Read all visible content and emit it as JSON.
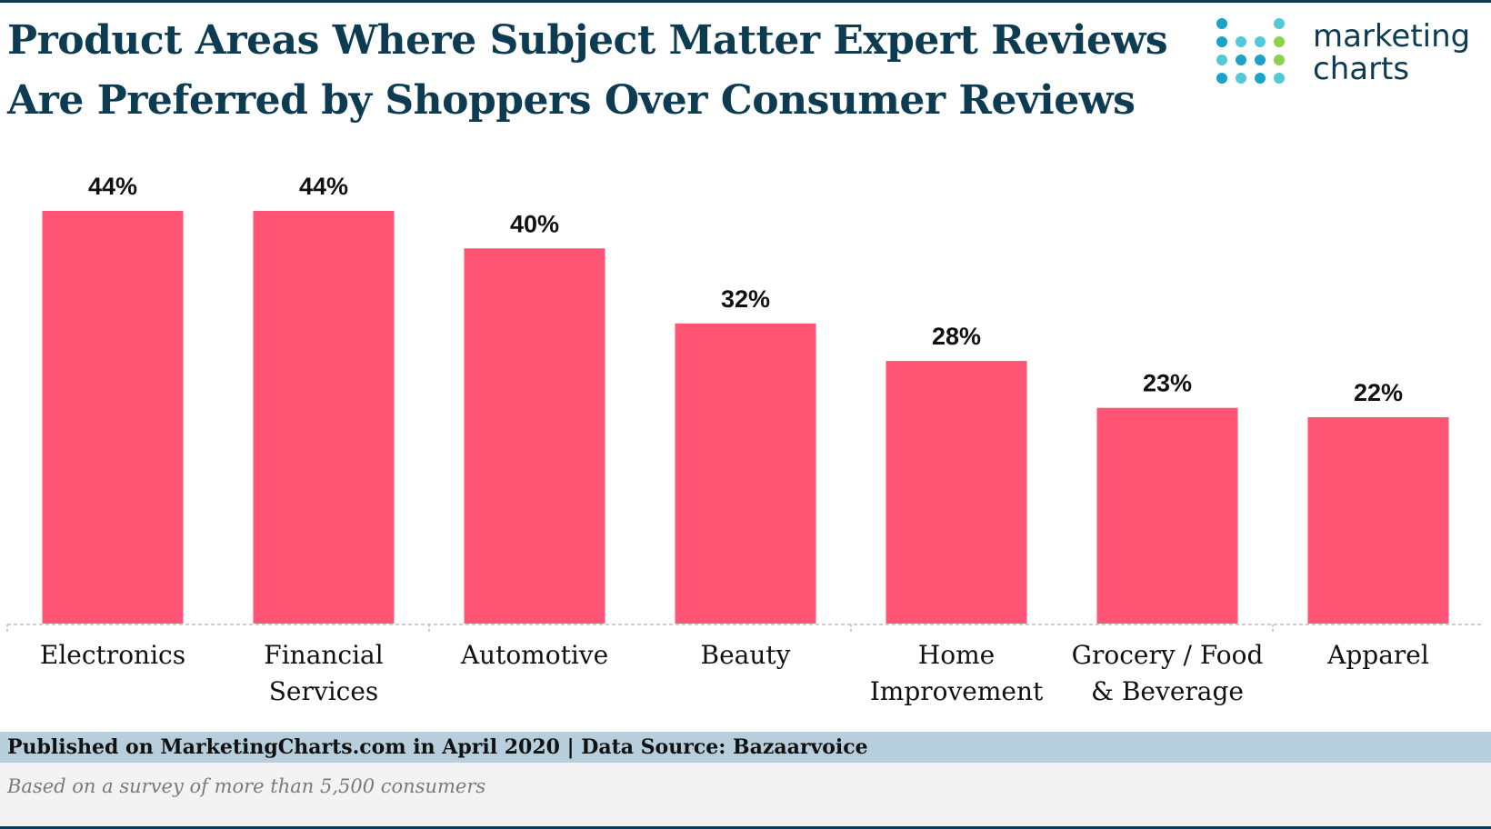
{
  "title_line1": "Product Areas Where Subject Matter Expert Reviews",
  "title_line2": "Are Preferred by Shoppers Over Consumer Reviews",
  "logo": {
    "line1": "marketing",
    "line2": "charts"
  },
  "colors": {
    "bar": "#ff5473",
    "title": "#0d3b52",
    "footer_band": "#b7cfdd",
    "logo_dots": [
      "#1aa3c8",
      "#52c9d6",
      "#8cd14b"
    ]
  },
  "chart_data": {
    "type": "bar",
    "categories": [
      "Electronics",
      "Financial Services",
      "Automotive",
      "Beauty",
      "Home Improvement",
      "Grocery / Food & Beverage",
      "Apparel"
    ],
    "category_lines": [
      [
        "Electronics"
      ],
      [
        "Financial",
        "Services"
      ],
      [
        "Automotive"
      ],
      [
        "Beauty"
      ],
      [
        "Home",
        "Improvement"
      ],
      [
        "Grocery / Food",
        "& Beverage"
      ],
      [
        "Apparel"
      ]
    ],
    "values": [
      44,
      44,
      40,
      32,
      28,
      23,
      22
    ],
    "data_labels": [
      "44%",
      "44%",
      "40%",
      "32%",
      "28%",
      "23%",
      "22%"
    ],
    "ylim": [
      0,
      50
    ],
    "grid": false,
    "xlabel": "",
    "ylabel": ""
  },
  "footer": {
    "published": "Published on MarketingCharts.com in April 2020 | Data Source: Bazaarvoice",
    "note": "Based on a survey of more than 5,500 consumers"
  }
}
